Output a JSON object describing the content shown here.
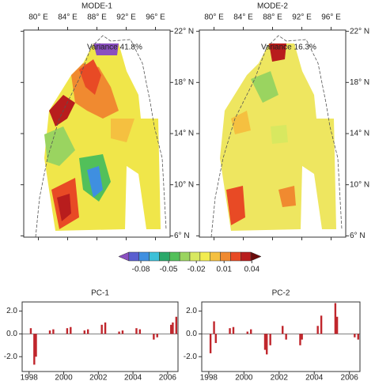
{
  "chart_data": [
    {
      "type": "map",
      "title": "MODE-1",
      "annotation": "Variance 41.8%",
      "xlim": [
        78,
        98
      ],
      "ylim": [
        5.9,
        22.1
      ],
      "xticks": [
        {
          "value": 80,
          "label": "80° E"
        },
        {
          "value": 84,
          "label": "84° E"
        },
        {
          "value": 88,
          "label": "88° E"
        },
        {
          "value": 92,
          "label": "92° E"
        },
        {
          "value": 96,
          "label": "96° E"
        }
      ],
      "yticks": [
        {
          "value": 22,
          "label": "22° N"
        },
        {
          "value": 18,
          "label": "18° N"
        },
        {
          "value": 14,
          "label": "14° N"
        },
        {
          "value": 10,
          "label": "10° N"
        },
        {
          "value": 6,
          "label": "6° N"
        }
      ]
    },
    {
      "type": "map",
      "title": "MODE-2",
      "annotation": "Variance 16.3%",
      "xlim": [
        78,
        98
      ],
      "ylim": [
        5.9,
        22.1
      ],
      "xticks": [
        {
          "value": 80,
          "label": "80° E"
        },
        {
          "value": 84,
          "label": "84° E"
        },
        {
          "value": 88,
          "label": "88° E"
        },
        {
          "value": 92,
          "label": "92° E"
        },
        {
          "value": 96,
          "label": "96° E"
        }
      ],
      "yticks": [
        {
          "value": 22,
          "label": "22° N"
        },
        {
          "value": 18,
          "label": "18° N"
        },
        {
          "value": 14,
          "label": "14° N"
        },
        {
          "value": 10,
          "label": "10° N"
        },
        {
          "value": 6,
          "label": "6° N"
        }
      ]
    },
    {
      "type": "colorbar",
      "xlim": [
        -0.104,
        0.05
      ],
      "xticks": [
        -0.08,
        -0.05,
        -0.02,
        0.01,
        0.04
      ],
      "colors": [
        "#8a4fc0",
        "#5a5fd0",
        "#3f8fe0",
        "#3cc0d8",
        "#2aa86a",
        "#52c05a",
        "#9ad460",
        "#d8e860",
        "#f2ec50",
        "#f5c040",
        "#f08a30",
        "#e84a25",
        "#b81d1d",
        "#6a0a0a"
      ]
    },
    {
      "type": "bar",
      "title": "PC-1",
      "color": "#c0262c",
      "x": [
        1998.1,
        1998.3,
        1998.4,
        1999.2,
        1999.4,
        2000.2,
        2000.4,
        2001.2,
        2001.4,
        2002.2,
        2002.4,
        2003.2,
        2003.4,
        2004.2,
        2004.4,
        2005.2,
        2005.4,
        2006.2,
        2006.3,
        2006.5
      ],
      "values": [
        0.5,
        -2.7,
        -2.0,
        0.3,
        0.4,
        0.5,
        0.6,
        0.3,
        0.4,
        0.8,
        1.0,
        0.2,
        0.3,
        0.5,
        0.4,
        -0.5,
        -0.3,
        0.8,
        1.0,
        1.5
      ],
      "xlim": [
        1997.6,
        2006.6
      ],
      "xticks": [
        1998,
        2000,
        2002,
        2004,
        2006
      ],
      "ylim": [
        -3.3,
        2.8
      ],
      "yticks": [
        {
          "value": 2,
          "label": "2.0"
        },
        {
          "value": 0,
          "label": "0.0"
        },
        {
          "value": -2,
          "label": "-2.0"
        }
      ]
    },
    {
      "type": "bar",
      "title": "PC-2",
      "color": "#c0262c",
      "x": [
        1998.1,
        1998.3,
        1998.4,
        1999.2,
        1999.4,
        2000.2,
        2000.4,
        2001.2,
        2001.3,
        2001.5,
        2002.2,
        2002.4,
        2003.2,
        2003.3,
        2004.2,
        2004.4,
        2005.2,
        2005.3,
        2006.3,
        2006.5
      ],
      "values": [
        -1.7,
        1.1,
        -0.8,
        0.5,
        0.6,
        0.2,
        0.4,
        -1.4,
        -1.8,
        -1.0,
        0.7,
        -0.5,
        -1.0,
        -0.5,
        0.7,
        1.6,
        2.7,
        1.5,
        -0.3,
        -0.5
      ],
      "xlim": [
        1997.6,
        2006.6
      ],
      "xticks": [
        1998,
        2000,
        2002,
        2004,
        2006
      ],
      "ylim": [
        -3.3,
        2.8
      ],
      "yticks": [
        {
          "value": 2,
          "label": "2.0"
        },
        {
          "value": 0,
          "label": "0.0"
        },
        {
          "value": -2,
          "label": "-2.0"
        }
      ]
    }
  ]
}
